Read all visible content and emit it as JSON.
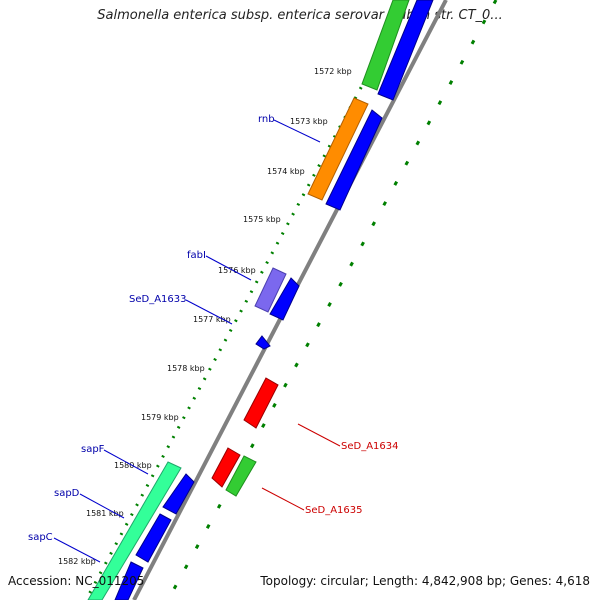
{
  "title": "Salmonella enterica subsp. enterica serovar Dublin str. CT_0...",
  "footer": {
    "accession": "Accession: NC_011205",
    "summary": "Topology: circular; Length: 4,842,908 bp; Genes: 4,618"
  },
  "colors": {
    "backbone": "#808080",
    "forward_cds": "#0000ff",
    "reverse_cds": "#ff0000",
    "rrna_like": "#ff8c00",
    "green_gene": "#33cc33",
    "teal_gene": "#33ff99",
    "purple_gene": "#7b68ee",
    "tick_green": "#008000",
    "label_blue": "#0000aa",
    "label_red": "#cc0000"
  },
  "ruler": [
    {
      "label": "1572 kbp"
    },
    {
      "label": "1573 kbp"
    },
    {
      "label": "1574 kbp"
    },
    {
      "label": "1575 kbp"
    },
    {
      "label": "1576 kbp"
    },
    {
      "label": "1577 kbp"
    },
    {
      "label": "1578 kbp"
    },
    {
      "label": "1579 kbp"
    },
    {
      "label": "1580 kbp"
    },
    {
      "label": "1581 kbp"
    },
    {
      "label": "1582 kbp"
    }
  ],
  "gene_labels": [
    {
      "name": "rnb",
      "color": "blue"
    },
    {
      "name": "fabI",
      "color": "blue"
    },
    {
      "name": "SeD_A1633",
      "color": "blue"
    },
    {
      "name": "sapF",
      "color": "blue"
    },
    {
      "name": "sapD",
      "color": "blue"
    },
    {
      "name": "sapC",
      "color": "blue"
    },
    {
      "name": "SeD_A1634",
      "color": "red"
    },
    {
      "name": "SeD_A1635",
      "color": "red"
    }
  ]
}
